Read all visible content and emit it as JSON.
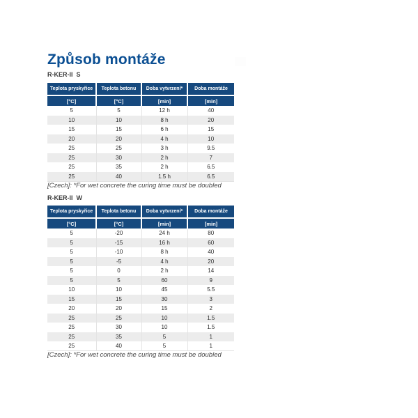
{
  "page": {
    "title": "Způsob montáže"
  },
  "colors": {
    "title_blue": "#0b4f93",
    "header_navy": "#16497e",
    "stripe_gray": "#ececec"
  },
  "tables": [
    {
      "label": "R-KER-II  S",
      "columns": [
        "Teplota pryskyřice",
        "Teplota betonu",
        "Doba vytvrzení*",
        "Doba montáže"
      ],
      "units": [
        "[°C]",
        "[°C]",
        "[min]",
        "[min]"
      ],
      "rows": [
        [
          "5",
          "5",
          "12 h",
          "40"
        ],
        [
          "10",
          "10",
          "8 h",
          "20"
        ],
        [
          "15",
          "15",
          "6 h",
          "15"
        ],
        [
          "20",
          "20",
          "4 h",
          "10"
        ],
        [
          "25",
          "25",
          "3 h",
          "9.5"
        ],
        [
          "25",
          "30",
          "2 h",
          "7"
        ],
        [
          "25",
          "35",
          "2 h",
          "6.5"
        ],
        [
          "25",
          "40",
          "1.5 h",
          "6.5"
        ]
      ],
      "footnote": "[Czech]: *For wet concrete the curing time must be doubled"
    },
    {
      "label": "R-KER-II  W",
      "columns": [
        "Teplota pryskyřice",
        "Teplota betonu",
        "Doba vytvrzení*",
        "Doba montáže"
      ],
      "units": [
        "[°C]",
        "[°C]",
        "[min]",
        "[min]"
      ],
      "rows": [
        [
          "5",
          "-20",
          "24 h",
          "80"
        ],
        [
          "5",
          "-15",
          "16 h",
          "60"
        ],
        [
          "5",
          "-10",
          "8 h",
          "40"
        ],
        [
          "5",
          "-5",
          "4 h",
          "20"
        ],
        [
          "5",
          "0",
          "2 h",
          "14"
        ],
        [
          "5",
          "5",
          "60",
          "9"
        ],
        [
          "10",
          "10",
          "45",
          "5.5"
        ],
        [
          "15",
          "15",
          "30",
          "3"
        ],
        [
          "20",
          "20",
          "15",
          "2"
        ],
        [
          "25",
          "25",
          "10",
          "1.5"
        ],
        [
          "25",
          "30",
          "10",
          "1.5"
        ],
        [
          "25",
          "35",
          "5",
          "1"
        ],
        [
          "25",
          "40",
          "5",
          "1"
        ]
      ],
      "footnote": "[Czech]: *For wet concrete the curing time must be doubled"
    }
  ]
}
